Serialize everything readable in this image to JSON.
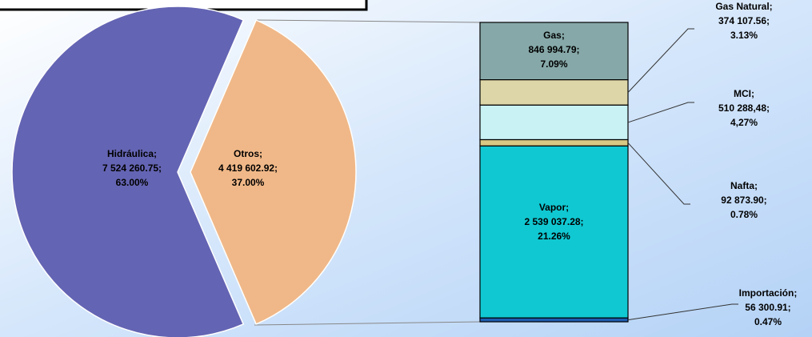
{
  "chart_data": {
    "type": "pie-of-bar",
    "pie": {
      "categories": [
        "Hidráulica;",
        "Otros;"
      ],
      "values": [
        7524260.75,
        4419602.92
      ],
      "value_labels": [
        "7 524 260.75;",
        "4 419 602.92;"
      ],
      "percents": [
        63.0,
        37.0
      ],
      "percent_labels": [
        "63.00%",
        "37.00%"
      ],
      "colors": [
        "#6464b4",
        "#f0b888"
      ]
    },
    "bar": {
      "categories": [
        "Gas;",
        "Gas Natural;",
        "MCI;",
        "Nafta;",
        "Vapor;",
        "Importación;"
      ],
      "values": [
        846994.79,
        374107.56,
        510288.48,
        92873.9,
        2539037.28,
        56300.91
      ],
      "value_labels": [
        "846 994.79;",
        "374 107.56;",
        "510 288,48;",
        "92 873.90;",
        "2 539 037.28;",
        "56 300.91;"
      ],
      "percents": [
        7.09,
        3.13,
        4.27,
        0.78,
        21.26,
        0.47
      ],
      "percent_labels": [
        "7.09%",
        "3.13%",
        "4,27%",
        "0.78%",
        "21.26%",
        "0.47%"
      ],
      "colors": [
        "#86a8a8",
        "#ddd6a8",
        "#c8f2f4",
        "#d8c884",
        "#10c8d2",
        "#1e5cb0"
      ]
    }
  }
}
